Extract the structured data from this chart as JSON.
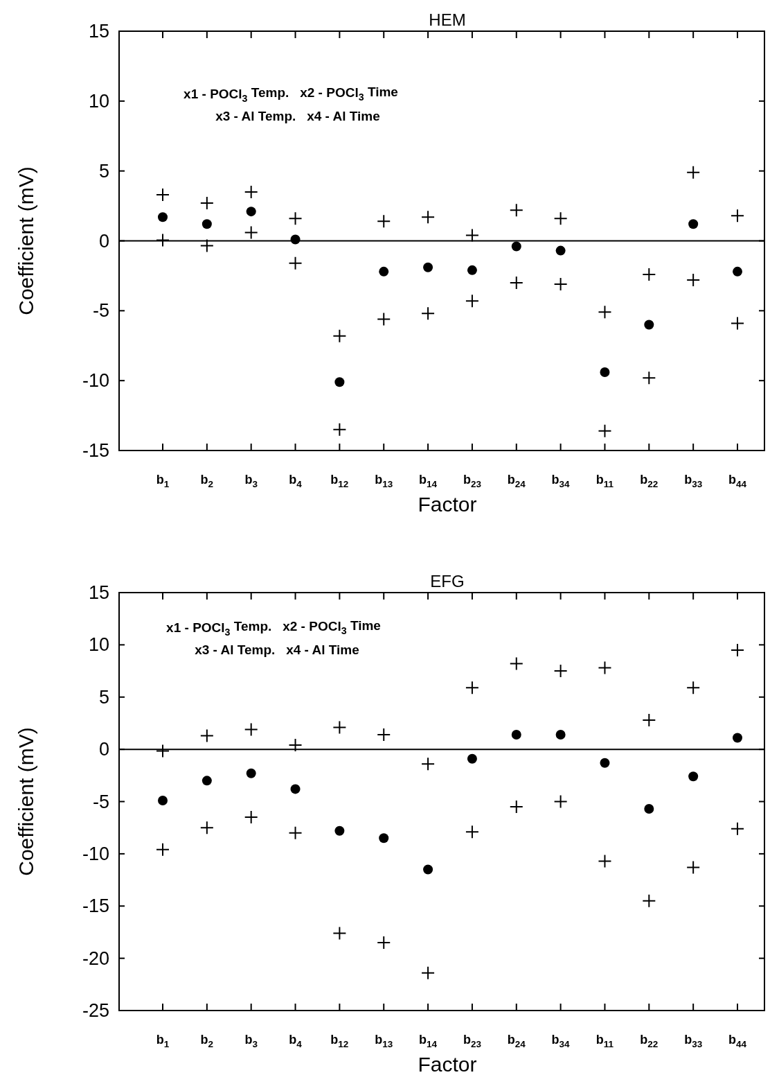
{
  "chart_data": [
    {
      "type": "scatter",
      "title": "HEM",
      "xlabel": "Factor",
      "ylabel": "Coefficient (mV)",
      "categories": [
        "b$_{1}$",
        "b$_{2}$",
        "b$_{3}$",
        "b$_{4}$",
        "b$_{12}$",
        "b$_{13}$",
        "b$_{14}$",
        "b$_{23}$",
        "b$_{24}$",
        "b$_{34}$",
        "b$_{11}$",
        "b$_{22}$",
        "b$_{33}$",
        "b$_{44}$"
      ],
      "ylim": [
        -15,
        15
      ],
      "yticks": [
        -15,
        -10,
        -5,
        0,
        5,
        10,
        15
      ],
      "grid": false,
      "series": [
        {
          "color": "#000000",
          "marker": "circle",
          "values": [
            1.7,
            1.2,
            2.1,
            0.1,
            -10.1,
            -2.2,
            -1.9,
            -2.1,
            -0.4,
            -0.7,
            -9.4,
            -6.0,
            1.2,
            -2.2
          ]
        },
        {
          "color": "#000000",
          "marker": "cross",
          "values": [
            3.3,
            2.7,
            3.5,
            1.6,
            -6.8,
            1.4,
            1.7,
            0.4,
            2.2,
            1.6,
            -5.1,
            -2.4,
            4.9,
            1.8
          ]
        },
        {
          "color": "#000000",
          "marker": "cross",
          "values": [
            0.05,
            -0.35,
            0.6,
            -1.6,
            -13.5,
            -5.6,
            -5.2,
            -4.3,
            -3.0,
            -3.1,
            -13.6,
            -9.8,
            -2.8,
            -5.9
          ]
        }
      ],
      "ref_lines": [
        {
          "axis": "y",
          "value": 0,
          "color": "#000000"
        }
      ],
      "annotations": [
        "x1 - POCl$_{3}$ Temp.   x2 - POCl$_{3}$ Time",
        "x3 - Al Temp.   x4 - Al Time"
      ]
    },
    {
      "type": "scatter",
      "title": "EFG",
      "xlabel": "Factor",
      "ylabel": "Coefficient (mV)",
      "categories": [
        "b$_{1}$",
        "b$_{2}$",
        "b$_{3}$",
        "b$_{4}$",
        "b$_{12}$",
        "b$_{13}$",
        "b$_{14}$",
        "b$_{23}$",
        "b$_{24}$",
        "b$_{34}$",
        "b$_{11}$",
        "b$_{22}$",
        "b$_{33}$",
        "b$_{44}$"
      ],
      "ylim": [
        -25,
        15
      ],
      "yticks": [
        -25,
        -20,
        -15,
        -10,
        -5,
        0,
        5,
        10,
        15
      ],
      "grid": false,
      "series": [
        {
          "color": "#000000",
          "marker": "circle",
          "values": [
            -4.9,
            -3.0,
            -2.3,
            -3.8,
            -7.8,
            -8.5,
            -11.5,
            -0.9,
            1.4,
            1.4,
            -1.3,
            -5.7,
            -2.6,
            1.1
          ]
        },
        {
          "color": "#000000",
          "marker": "cross",
          "values": [
            -0.15,
            1.3,
            1.9,
            0.4,
            2.1,
            1.4,
            -1.4,
            5.9,
            8.2,
            7.5,
            7.8,
            2.8,
            5.9,
            9.5
          ]
        },
        {
          "color": "#000000",
          "marker": "cross",
          "values": [
            -9.6,
            -7.5,
            -6.5,
            -8.0,
            -17.6,
            -18.5,
            -21.4,
            -7.9,
            -5.5,
            -5.0,
            -10.7,
            -14.5,
            -11.3,
            -7.6
          ]
        }
      ],
      "ref_lines": [
        {
          "axis": "y",
          "value": 0,
          "color": "#000000"
        }
      ],
      "annotations": [
        "x1 - POCl$_{3}$ Temp.   x2 - POCl$_{3}$ Time",
        "x3 - Al Temp.   x4 - Al Time"
      ]
    }
  ]
}
